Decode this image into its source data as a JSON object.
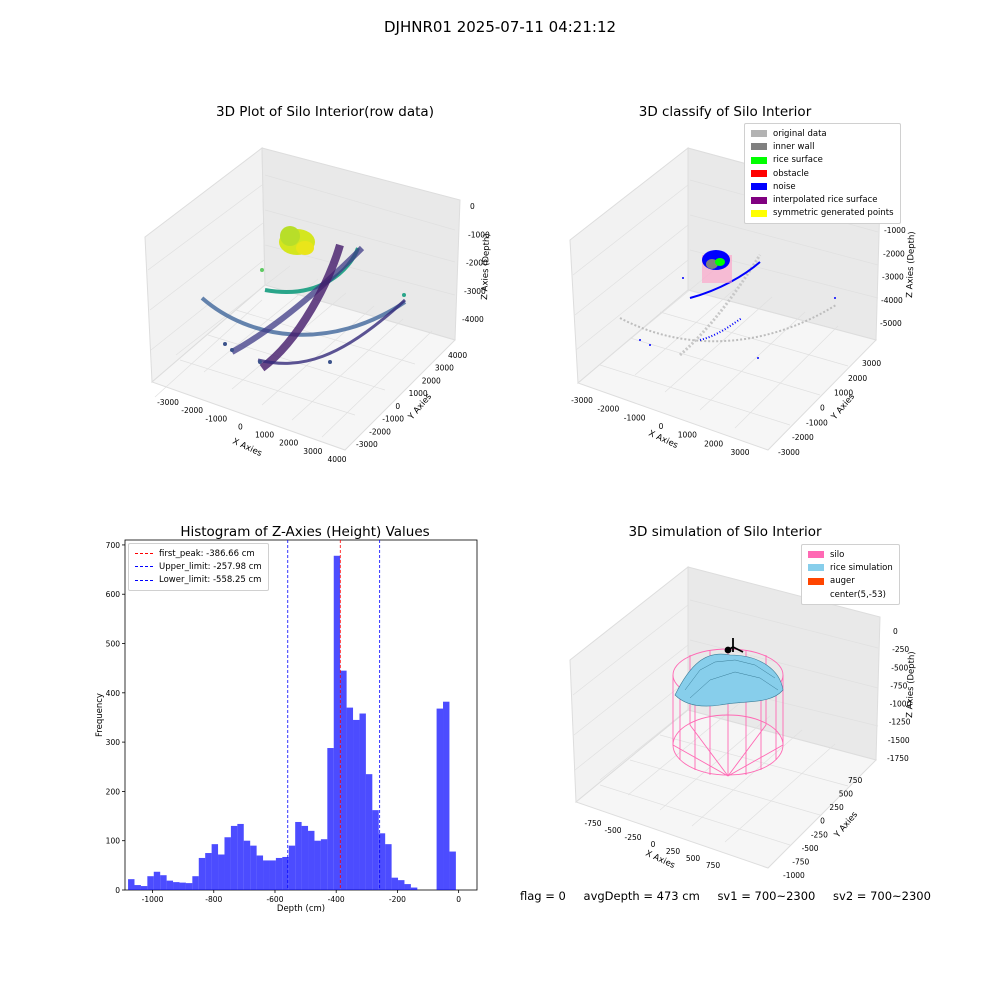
{
  "suptitle": "DJHNR01 2025-07-11 04:21:12",
  "panels": {
    "raw": {
      "title": "3D Plot of Silo Interior(row data)",
      "xlabel": "X Axies",
      "ylabel": "Y Axies",
      "zlabel": "Z Axies (Depth)",
      "xticks": [
        "-3000",
        "-2000",
        "-1000",
        "0",
        "1000",
        "2000",
        "3000",
        "4000"
      ],
      "yticks": [
        "-3000",
        "-2000",
        "-1000",
        "0",
        "1000",
        "2000",
        "3000",
        "4000"
      ],
      "zticks": [
        "0",
        "-1000",
        "-2000",
        "-3000",
        "-4000"
      ]
    },
    "classify": {
      "title": "3D classify of Silo Interior",
      "xlabel": "X Axies",
      "ylabel": "Y Axies",
      "zlabel": "Z Axies (Depth)",
      "xticks": [
        "-3000",
        "-2000",
        "-1000",
        "0",
        "1000",
        "2000",
        "3000"
      ],
      "yticks": [
        "-3000",
        "-2000",
        "-1000",
        "0",
        "1000",
        "2000",
        "3000"
      ],
      "zticks": [
        "0",
        "-1000",
        "-2000",
        "-3000",
        "-4000",
        "-5000"
      ],
      "legend": [
        {
          "label": "original data",
          "color": "#b3b3b3"
        },
        {
          "label": "inner wall",
          "color": "#808080"
        },
        {
          "label": "rice surface",
          "color": "#00ff00"
        },
        {
          "label": "obstacle",
          "color": "#ff0000"
        },
        {
          "label": "noise",
          "color": "#0000ff"
        },
        {
          "label": "interpolated rice surface",
          "color": "#800080"
        },
        {
          "label": "symmetric generated points",
          "color": "#ffff00"
        }
      ]
    },
    "simulation": {
      "title": "3D simulation of Silo Interior",
      "xlabel": "X Axies",
      "ylabel": "Y Axies",
      "zlabel": "Z Axies (Depth)",
      "xticks": [
        "-750",
        "-500",
        "-250",
        "0",
        "250",
        "500",
        "750"
      ],
      "yticks": [
        "-1000",
        "-750",
        "-500",
        "-250",
        "0",
        "250",
        "500",
        "750"
      ],
      "zticks": [
        "0",
        "-250",
        "-500",
        "-750",
        "-1000",
        "-1250",
        "-1500",
        "-1750"
      ],
      "legend": [
        {
          "label": "silo",
          "color": "#ff69b4"
        },
        {
          "label": "rice simulation",
          "color": "#87ceeb"
        },
        {
          "label": "auger",
          "color": "#ff4500"
        },
        {
          "label": "center(5,-53)",
          "color": ""
        }
      ]
    }
  },
  "footer": {
    "flag": "flag = 0",
    "avg": "avgDepth = 473 cm",
    "sv1": "sv1 = 700~2300",
    "sv2": "sv2 = 700~2300"
  },
  "chart_data": [
    {
      "type": "bar",
      "title": "Histogram of Z-Axies (Height) Values",
      "xlabel": "Depth (cm)",
      "ylabel": "Frequency",
      "xlim": [
        -1090,
        60
      ],
      "ylim": [
        0,
        710
      ],
      "xticks": [
        -1000,
        -800,
        -600,
        -400,
        -200,
        0
      ],
      "yticks": [
        0,
        100,
        200,
        300,
        400,
        500,
        600,
        700
      ],
      "bin_width": 21,
      "bin_start": -1080,
      "color": "#0000ff",
      "values": [
        22,
        10,
        8,
        28,
        37,
        30,
        19,
        16,
        15,
        14,
        28,
        65,
        75,
        93,
        72,
        107,
        130,
        134,
        100,
        90,
        70,
        60,
        60,
        65,
        67,
        90,
        138,
        130,
        120,
        100,
        103,
        288,
        678,
        445,
        370,
        345,
        358,
        235,
        162,
        115,
        93,
        25,
        20,
        12,
        5,
        0,
        0,
        0,
        368,
        382,
        78
      ],
      "lines": [
        {
          "name": "first_peak: -386.66 cm",
          "x": -386.66,
          "color": "#ff0000"
        },
        {
          "name": "Upper_limit: -257.98 cm",
          "x": -257.98,
          "color": "#0000ff"
        },
        {
          "name": "Lower_limit: -558.25 cm",
          "x": -558.25,
          "color": "#0000ff"
        }
      ]
    }
  ]
}
